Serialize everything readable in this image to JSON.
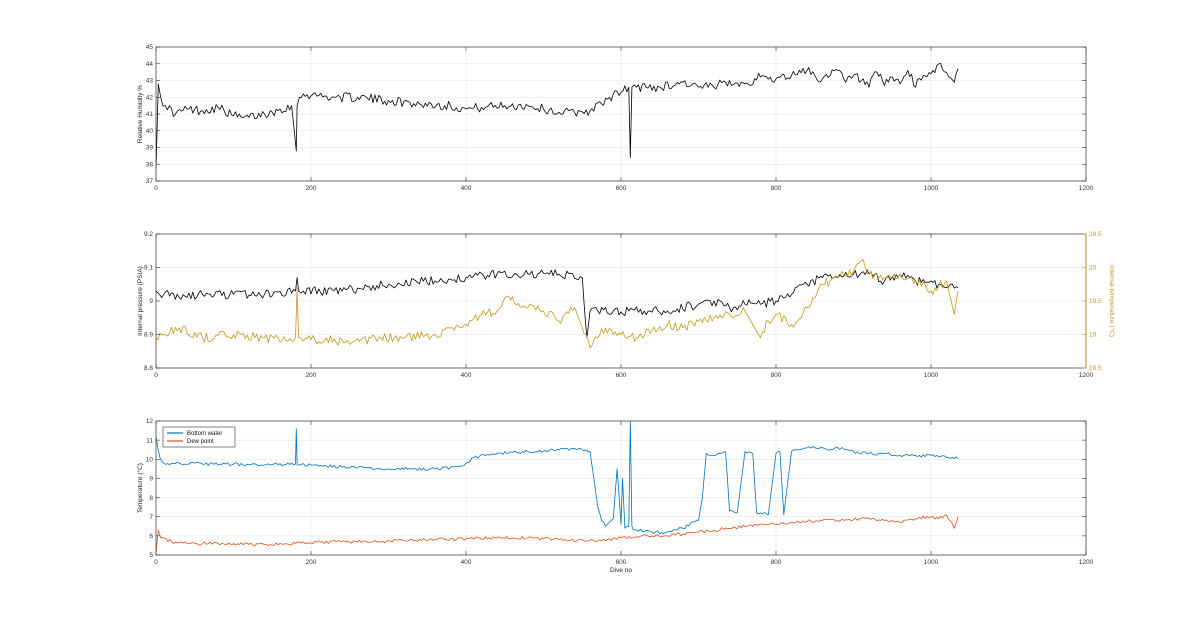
{
  "chart_data": [
    {
      "type": "line",
      "xlabel": "",
      "ylabel": "Relative Humidity %",
      "xlim": [
        0,
        1200
      ],
      "ylim": [
        37,
        45
      ],
      "xticks": [
        0,
        200,
        400,
        600,
        800,
        1000,
        1200
      ],
      "yticks": [
        37,
        38,
        39,
        40,
        41,
        42,
        43,
        44,
        45
      ],
      "grid": true,
      "series": [
        {
          "color": "#000000",
          "x": [
            0,
            3,
            6,
            12,
            25,
            40,
            60,
            80,
            100,
            110,
            120,
            140,
            150,
            160,
            175,
            181,
            182,
            185,
            190,
            210,
            230,
            260,
            300,
            340,
            380,
            400,
            420,
            450,
            480,
            500,
            520,
            540,
            560,
            575,
            585,
            600,
            610,
            612,
            614,
            620,
            650,
            680,
            700,
            720,
            740,
            760,
            780,
            800,
            820,
            830,
            840,
            850,
            860,
            870,
            880,
            890,
            900,
            910,
            920,
            930,
            940,
            950,
            960,
            970,
            980,
            990,
            1000,
            1010,
            1020,
            1030,
            1035
          ],
          "y": [
            37.7,
            42.8,
            42.0,
            41.5,
            41.0,
            41.3,
            41.2,
            41.4,
            40.9,
            40.8,
            40.8,
            41.0,
            41.1,
            41.3,
            41.5,
            38.8,
            41.5,
            42.0,
            42.2,
            42.1,
            42.0,
            42.0,
            41.8,
            41.6,
            41.5,
            41.3,
            41.4,
            41.5,
            41.5,
            41.3,
            41.1,
            41.1,
            41.2,
            41.6,
            42.0,
            42.3,
            42.6,
            38.4,
            42.6,
            42.6,
            42.6,
            42.9,
            42.6,
            42.6,
            43.0,
            42.8,
            43.2,
            43.1,
            43.3,
            43.6,
            43.6,
            43.3,
            43.1,
            43.3,
            43.6,
            42.9,
            43.3,
            43.0,
            42.6,
            43.5,
            42.7,
            43.2,
            42.8,
            43.6,
            42.6,
            43.3,
            43.4,
            44.0,
            43.5,
            42.9,
            43.7
          ]
        }
      ]
    },
    {
      "type": "line",
      "xlabel": "",
      "ylabel": "Internal pressure (PSIA)",
      "y2label": "Internal temperature (°C)",
      "xlim": [
        0,
        1200
      ],
      "ylim": [
        8.8,
        9.2
      ],
      "y2lim": [
        18.5,
        20.5
      ],
      "xticks": [
        0,
        200,
        400,
        600,
        800,
        1000,
        1200
      ],
      "yticks": [
        8.8,
        8.9,
        9,
        9.1,
        9.2
      ],
      "y2ticks": [
        18.5,
        19,
        19.5,
        20,
        20.5
      ],
      "grid": true,
      "series": [
        {
          "axis": "left",
          "color": "#000000",
          "x": [
            0,
            10,
            30,
            60,
            100,
            140,
            180,
            182,
            184,
            190,
            240,
            300,
            360,
            400,
            440,
            480,
            520,
            550,
            553,
            556,
            560,
            570,
            590,
            610,
            630,
            660,
            700,
            720,
            740,
            760,
            780,
            800,
            820,
            840,
            860,
            880,
            900,
            920,
            940,
            960,
            980,
            1000,
            1020,
            1035
          ],
          "y": [
            9.03,
            9.02,
            9.01,
            9.02,
            9.02,
            9.02,
            9.03,
            9.07,
            9.03,
            9.03,
            9.03,
            9.05,
            9.06,
            9.07,
            9.08,
            9.08,
            9.08,
            9.07,
            8.97,
            8.89,
            8.97,
            8.97,
            8.97,
            8.97,
            8.97,
            8.97,
            8.99,
            9.0,
            8.98,
            8.99,
            8.99,
            9.0,
            9.02,
            9.05,
            9.07,
            9.07,
            9.08,
            9.08,
            9.06,
            9.08,
            9.06,
            9.06,
            9.04,
            9.04
          ]
        },
        {
          "axis": "right",
          "color": "#c8961e",
          "x": [
            0,
            10,
            30,
            60,
            100,
            140,
            170,
            180,
            182,
            184,
            190,
            220,
            250,
            290,
            320,
            360,
            380,
            400,
            420,
            440,
            450,
            480,
            500,
            520,
            540,
            555,
            560,
            570,
            580,
            590,
            600,
            620,
            640,
            660,
            680,
            700,
            720,
            740,
            760,
            780,
            790,
            800,
            820,
            840,
            860,
            880,
            900,
            910,
            920,
            940,
            960,
            980,
            1000,
            1020,
            1030,
            1035
          ],
          "y": [
            18.95,
            19.0,
            19.1,
            18.95,
            19.0,
            18.95,
            18.9,
            18.95,
            19.7,
            18.95,
            18.9,
            18.95,
            18.85,
            18.95,
            18.95,
            19.0,
            19.1,
            19.15,
            19.3,
            19.35,
            19.55,
            19.4,
            19.35,
            19.2,
            19.4,
            19.0,
            18.8,
            18.95,
            19.1,
            19.0,
            19.0,
            18.95,
            19.05,
            19.15,
            19.1,
            19.2,
            19.25,
            19.3,
            19.35,
            18.95,
            19.2,
            19.3,
            19.15,
            19.4,
            19.75,
            19.85,
            19.95,
            20.1,
            19.9,
            19.85,
            19.9,
            19.8,
            19.65,
            19.8,
            19.3,
            19.65
          ]
        }
      ]
    },
    {
      "type": "line",
      "xlabel": "Dive no",
      "ylabel": "Temperature (°C)",
      "xlim": [
        0,
        1200
      ],
      "ylim": [
        5,
        12
      ],
      "xticks": [
        0,
        200,
        400,
        600,
        800,
        1000,
        1200
      ],
      "yticks": [
        5,
        6,
        7,
        8,
        9,
        10,
        11,
        12
      ],
      "grid": true,
      "legend": "top-left",
      "series": [
        {
          "name": "Bottom water",
          "color": "#0072bd",
          "x": [
            0,
            5,
            10,
            30,
            60,
            100,
            140,
            180,
            181,
            182,
            185,
            200,
            260,
            300,
            360,
            390,
            400,
            410,
            440,
            480,
            520,
            550,
            560,
            565,
            570,
            575,
            580,
            585,
            590,
            595,
            600,
            602,
            605,
            610,
            612,
            614,
            616,
            620,
            640,
            660,
            680,
            700,
            705,
            710,
            720,
            730,
            735,
            740,
            750,
            760,
            770,
            775,
            780,
            790,
            800,
            805,
            810,
            820,
            825,
            830,
            840,
            850,
            860,
            870,
            880,
            890,
            900,
            920,
            940,
            960,
            980,
            1000,
            1020,
            1035
          ],
          "y": [
            11.2,
            10.1,
            9.8,
            9.8,
            9.75,
            9.75,
            9.7,
            9.75,
            11.6,
            9.7,
            9.7,
            9.7,
            9.55,
            9.5,
            9.5,
            9.6,
            9.8,
            10.1,
            10.3,
            10.4,
            10.5,
            10.5,
            10.4,
            9.0,
            7.5,
            6.8,
            6.5,
            6.7,
            6.9,
            9.5,
            6.6,
            9.0,
            6.4,
            6.5,
            12.0,
            6.5,
            6.3,
            6.3,
            6.2,
            6.2,
            6.4,
            6.8,
            8.0,
            10.3,
            10.2,
            10.3,
            10.4,
            7.3,
            7.2,
            10.4,
            10.3,
            7.2,
            7.2,
            7.1,
            10.3,
            10.4,
            7.1,
            10.4,
            10.5,
            10.5,
            10.6,
            10.6,
            10.6,
            10.5,
            10.6,
            10.5,
            10.4,
            10.3,
            10.3,
            10.2,
            10.2,
            10.2,
            10.1,
            10.05
          ]
        },
        {
          "name": "Dew point",
          "color": "#d95319",
          "x": [
            0,
            3,
            6,
            20,
            40,
            60,
            80,
            100,
            120,
            140,
            160,
            180,
            200,
            240,
            280,
            320,
            360,
            400,
            440,
            480,
            520,
            560,
            580,
            600,
            620,
            640,
            660,
            680,
            700,
            720,
            740,
            760,
            780,
            800,
            820,
            840,
            860,
            880,
            900,
            920,
            940,
            960,
            980,
            1000,
            1010,
            1020,
            1030,
            1035
          ],
          "y": [
            5.1,
            6.3,
            5.9,
            5.7,
            5.6,
            5.6,
            5.6,
            5.6,
            5.55,
            5.55,
            5.6,
            5.6,
            5.65,
            5.7,
            5.7,
            5.75,
            5.8,
            5.85,
            5.9,
            5.9,
            5.8,
            5.75,
            5.75,
            5.9,
            5.95,
            6.0,
            6.0,
            6.1,
            6.2,
            6.3,
            6.4,
            6.5,
            6.6,
            6.6,
            6.7,
            6.75,
            6.8,
            6.8,
            6.85,
            6.9,
            6.8,
            6.7,
            6.9,
            7.0,
            6.9,
            7.1,
            6.4,
            7.0
          ]
        }
      ]
    }
  ]
}
